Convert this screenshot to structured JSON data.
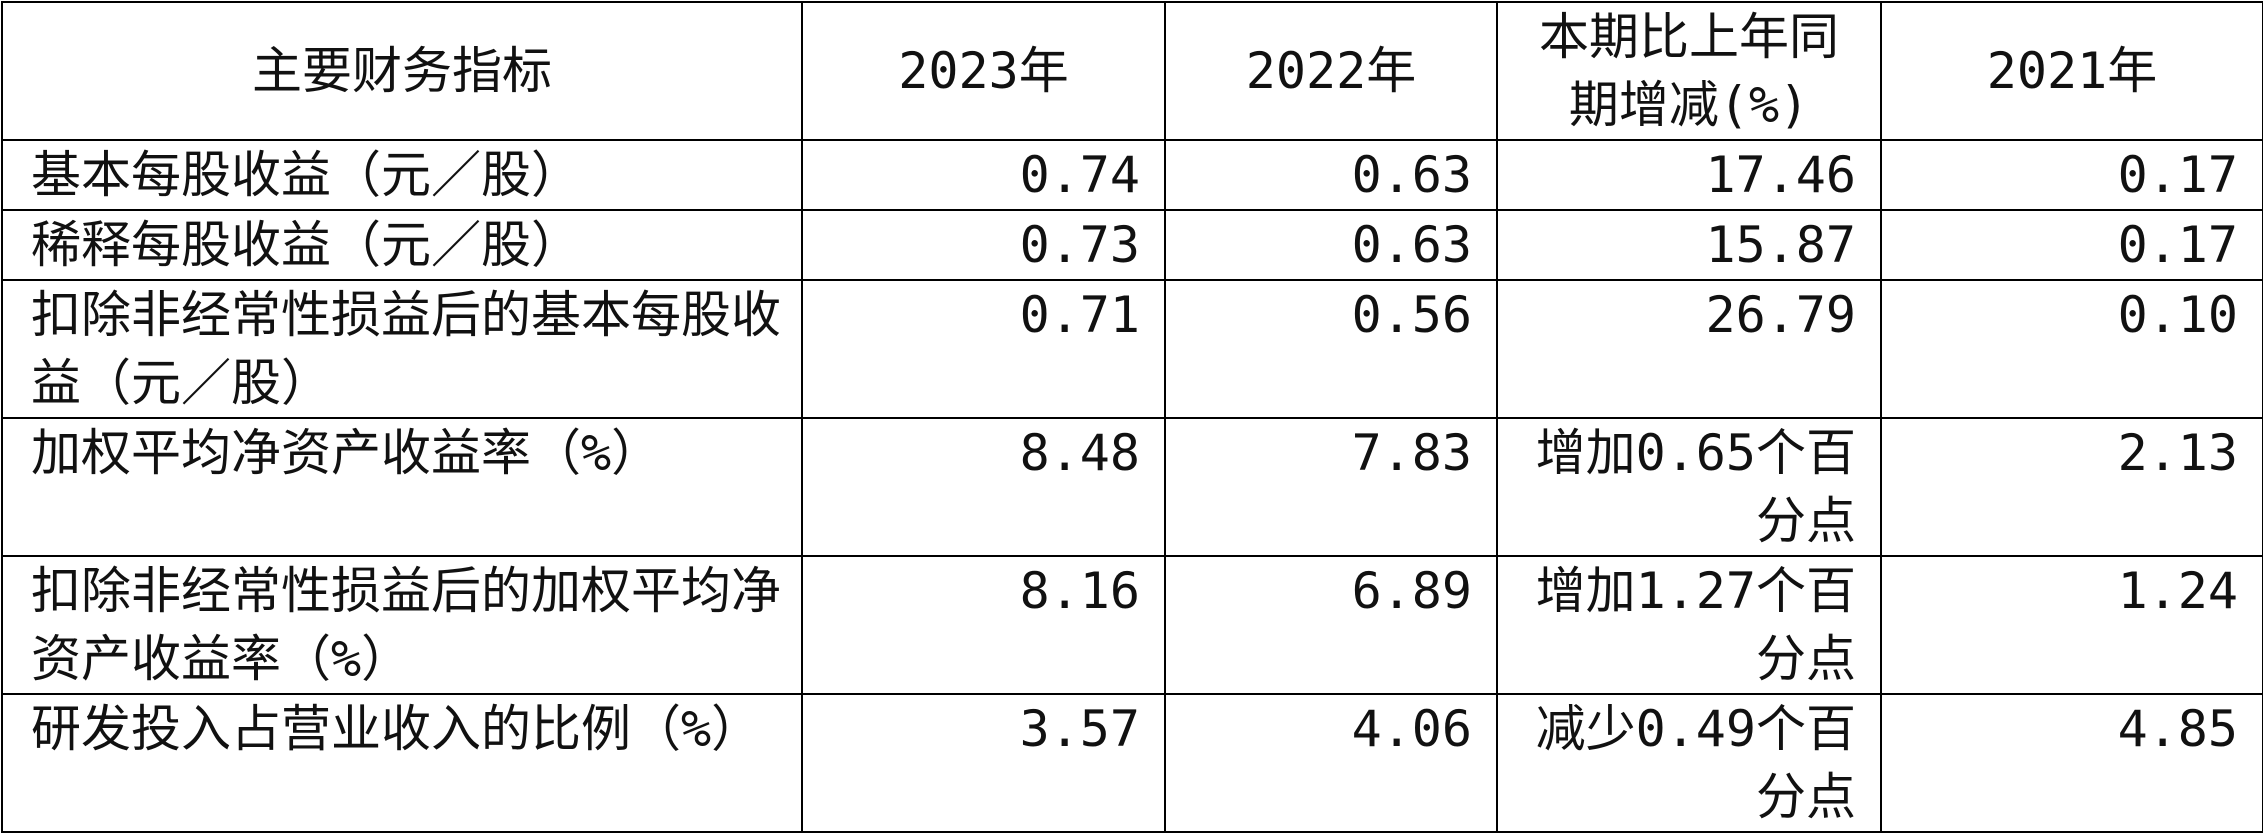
{
  "table": {
    "header": [
      "主要财务指标",
      "2023年",
      "2022年",
      "本期比上年同期增减(%)",
      "2021年"
    ],
    "rows": [
      [
        "基本每股收益（元／股）",
        "0.74",
        "0.63",
        "17.46",
        "0.17"
      ],
      [
        "稀释每股收益（元／股）",
        "0.73",
        "0.63",
        "15.87",
        "0.17"
      ],
      [
        "扣除非经常性损益后的基本每股收益（元／股）",
        "0.71",
        "0.56",
        "26.79",
        "0.10"
      ],
      [
        "加权平均净资产收益率（%）",
        "8.48",
        "7.83",
        "增加0.65个百分点",
        "2.13"
      ],
      [
        "扣除非经常性损益后的加权平均净资产收益率（%）",
        "8.16",
        "6.89",
        "增加1.27个百分点",
        "1.24"
      ],
      [
        "研发投入占营业收入的比例（%）",
        "3.57",
        "4.06",
        "减少0.49个百分点",
        "4.85"
      ]
    ]
  }
}
